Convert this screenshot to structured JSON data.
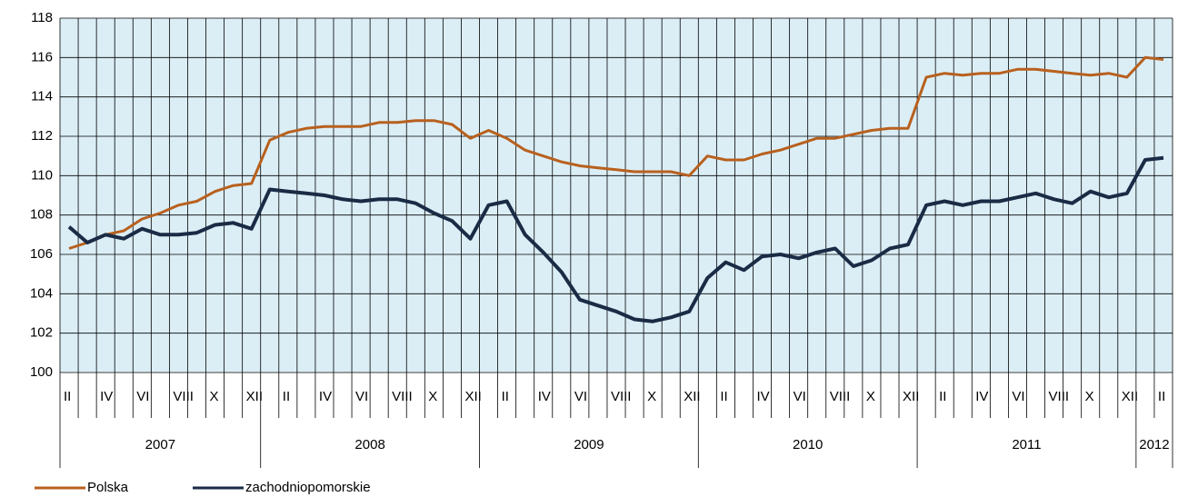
{
  "chart_data": {
    "type": "line",
    "categories": [
      "II",
      null,
      "IV",
      null,
      "VI",
      null,
      "VIII",
      null,
      "X",
      null,
      "XII",
      null,
      "II",
      null,
      "IV",
      null,
      "VI",
      null,
      "VIII",
      null,
      "X",
      null,
      "XII",
      null,
      "II",
      null,
      "IV",
      null,
      "VI",
      null,
      "VIII",
      null,
      "X",
      null,
      "XII",
      null,
      "II",
      null,
      "IV",
      null,
      "VI",
      null,
      "VIII",
      null,
      "X",
      null,
      "XII",
      null,
      "II",
      null,
      "IV",
      null,
      "VI",
      null,
      "VIII",
      null,
      "X",
      null,
      "XII",
      null,
      "II"
    ],
    "x_groups": [
      {
        "label": "2007",
        "count": 11
      },
      {
        "label": "2008",
        "count": 12
      },
      {
        "label": "2009",
        "count": 12
      },
      {
        "label": "2010",
        "count": 12
      },
      {
        "label": "2011",
        "count": 12
      },
      {
        "label": "2012",
        "count": 2
      }
    ],
    "series": [
      {
        "name": "Polska",
        "color": "#b8601e",
        "values": [
          106.3,
          106.6,
          107.0,
          107.2,
          107.8,
          108.1,
          108.5,
          108.7,
          109.2,
          109.5,
          109.6,
          111.8,
          112.2,
          112.4,
          112.5,
          112.5,
          112.5,
          112.7,
          112.7,
          112.8,
          112.8,
          112.6,
          111.9,
          112.3,
          111.9,
          111.3,
          111.0,
          110.7,
          110.5,
          110.4,
          110.3,
          110.2,
          110.2,
          110.2,
          110.0,
          111.0,
          110.8,
          110.8,
          111.1,
          111.3,
          111.6,
          111.9,
          111.9,
          112.1,
          112.3,
          112.4,
          112.4,
          115.0,
          115.2,
          115.1,
          115.2,
          115.2,
          115.4,
          115.4,
          115.3,
          115.2,
          115.1,
          115.2,
          115.0,
          116.0,
          115.9
        ]
      },
      {
        "name": "zachodniopomorskie",
        "color": "#1a2b45",
        "values": [
          107.4,
          106.6,
          107.0,
          106.8,
          107.3,
          107.0,
          107.0,
          107.1,
          107.5,
          107.6,
          107.3,
          109.3,
          109.2,
          109.1,
          109.0,
          108.8,
          108.7,
          108.8,
          108.8,
          108.6,
          108.1,
          107.7,
          106.8,
          108.5,
          108.7,
          107.0,
          106.1,
          105.1,
          103.7,
          103.4,
          103.1,
          102.7,
          102.6,
          102.8,
          103.1,
          104.8,
          105.6,
          105.2,
          105.9,
          106.0,
          105.8,
          106.1,
          106.3,
          105.4,
          105.7,
          106.3,
          106.5,
          108.5,
          108.7,
          108.5,
          108.7,
          108.7,
          108.9,
          109.1,
          108.8,
          108.6,
          109.2,
          108.9,
          109.1,
          110.8,
          110.9
        ]
      }
    ],
    "ylim": [
      100,
      118
    ],
    "yticks": [
      100,
      102,
      104,
      106,
      108,
      110,
      112,
      114,
      116,
      118
    ],
    "grid": true,
    "legend": "bottom-left",
    "background": "#dbeef6"
  }
}
